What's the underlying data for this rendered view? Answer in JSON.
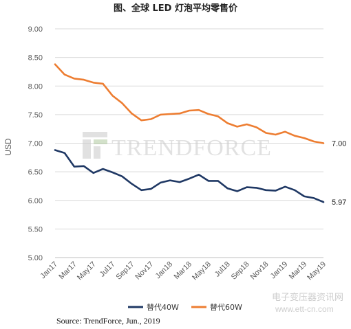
{
  "chart_data": {
    "type": "line",
    "title": "图、全球 LED 灯泡平均零售价",
    "ylabel": "USD",
    "xlabel": "",
    "ylim": [
      5.0,
      9.0
    ],
    "yticks": [
      "5.00",
      "5.50",
      "6.00",
      "6.50",
      "7.00",
      "7.50",
      "8.00",
      "8.50",
      "9.00"
    ],
    "categories": [
      "Jan17",
      "Feb17",
      "Mar17",
      "Apr17",
      "May17",
      "Jun17",
      "Jul17",
      "Aug17",
      "Sep17",
      "Oct17",
      "Nov17",
      "Dec17",
      "Jan18",
      "Feb18",
      "Mar18",
      "Apr18",
      "May18",
      "Jun18",
      "Jul18",
      "Aug18",
      "Sep18",
      "Oct18",
      "Nov18",
      "Dec18",
      "Jan19",
      "Feb19",
      "Mar19",
      "Apr19",
      "May19"
    ],
    "xtick_labels": [
      "Jan17",
      "Mar17",
      "May17",
      "Jul17",
      "Sep17",
      "Nov17",
      "Jan18",
      "Mar18",
      "May18",
      "Jul18",
      "Sep18",
      "Nov18",
      "Jan19",
      "Mar19",
      "May19"
    ],
    "grid": true,
    "legend_position": "bottom",
    "series": [
      {
        "name": "替代40W",
        "color": "#1f3864",
        "values": [
          6.88,
          6.83,
          6.59,
          6.6,
          6.48,
          6.55,
          6.49,
          6.42,
          6.29,
          6.18,
          6.2,
          6.31,
          6.35,
          6.32,
          6.38,
          6.45,
          6.34,
          6.34,
          6.21,
          6.16,
          6.23,
          6.22,
          6.18,
          6.17,
          6.24,
          6.18,
          6.07,
          6.04,
          5.97
        ],
        "end_label": "5.97"
      },
      {
        "name": "替代60W",
        "color": "#ed7d31",
        "values": [
          8.38,
          8.2,
          8.13,
          8.11,
          8.06,
          8.04,
          7.83,
          7.7,
          7.52,
          7.4,
          7.42,
          7.5,
          7.51,
          7.52,
          7.57,
          7.58,
          7.51,
          7.47,
          7.35,
          7.29,
          7.33,
          7.28,
          7.18,
          7.15,
          7.2,
          7.13,
          7.09,
          7.03,
          7.0
        ],
        "end_label": "7.00"
      }
    ],
    "source": "Source: TrendForce, Jun., 2019"
  },
  "watermark": {
    "brand": "TRENDFORCE",
    "site_name": "电子变压器资讯网",
    "site_url": "www.ett-cn.com"
  }
}
